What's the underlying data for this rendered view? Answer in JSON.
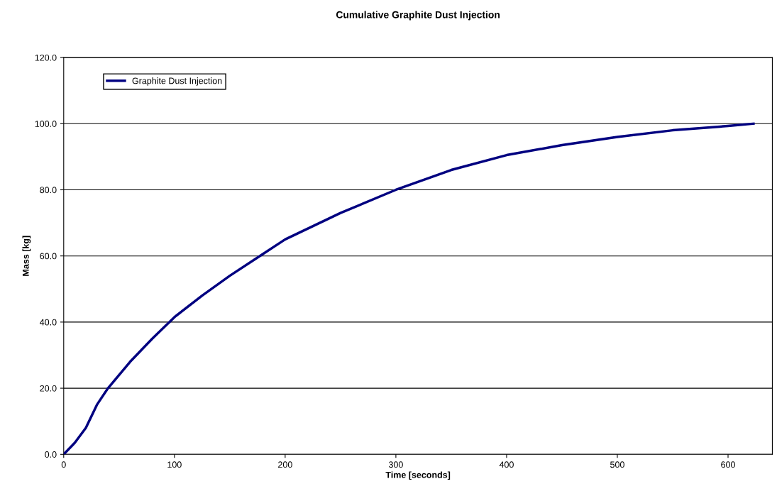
{
  "chart_data": {
    "type": "line",
    "title": "Cumulative Graphite Dust Injection",
    "xlabel": "Time [seconds]",
    "ylabel": "Mass [kg]",
    "x": [
      0,
      10,
      20,
      30,
      40,
      60,
      80,
      100,
      125,
      150,
      175,
      200,
      250,
      300,
      350,
      400,
      450,
      500,
      550,
      600,
      623
    ],
    "series": [
      {
        "name": "Graphite Dust Injection",
        "color": "#000080",
        "values": [
          0,
          3.5,
          8,
          15,
          20,
          28,
          35,
          41.5,
          48,
          54,
          59.5,
          65,
          73,
          80,
          86,
          90.5,
          93.5,
          96,
          98,
          99.3,
          100
        ]
      }
    ],
    "xlim": [
      0,
      640
    ],
    "xticks": [
      0,
      100,
      200,
      300,
      400,
      500,
      600
    ],
    "ylim": [
      0,
      120
    ],
    "yticks": [
      {
        "value": 0,
        "label": "0.0"
      },
      {
        "value": 20,
        "label": "20.0"
      },
      {
        "value": 40,
        "label": "40.0"
      },
      {
        "value": 60,
        "label": "60.0"
      },
      {
        "value": 80,
        "label": "80.0"
      },
      {
        "value": 100,
        "label": "100.0"
      },
      {
        "value": 120,
        "label": "120.0"
      }
    ],
    "grid": "y",
    "legend": "top left",
    "marker": "none",
    "line_style": "solid"
  }
}
